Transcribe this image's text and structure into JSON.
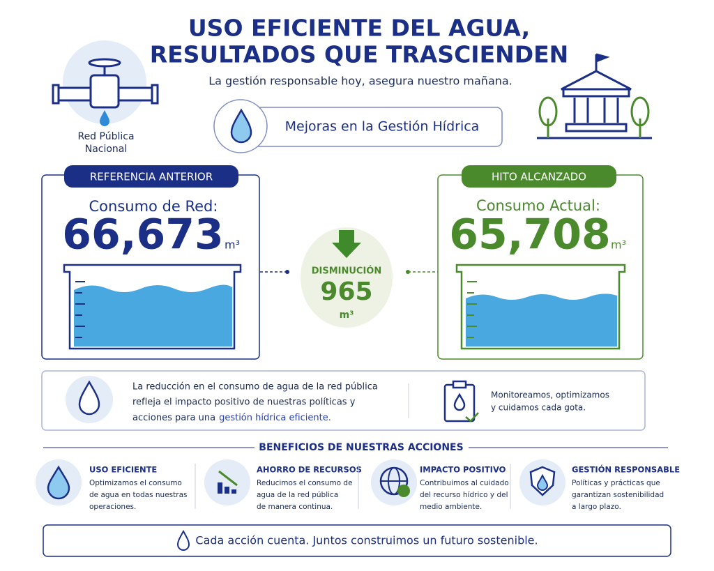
{
  "header": {
    "title_line1": "USO EFICIENTE DEL AGUA,",
    "title_line2": "RESULTADOS QUE TRASCIENDEN",
    "subtitle": "La gestión responsable hoy, asegura nuestro mañana."
  },
  "network_label": {
    "line1": "Red Pública",
    "line2": "Nacional"
  },
  "highlight": "Mejoras en la Gestión Hídrica",
  "previous": {
    "badge": "REFERENCIA ANTERIOR",
    "label": "Consumo de Red:",
    "value": "66,673",
    "unit": "m³"
  },
  "reduction": {
    "label": "DISMINUCIÓN",
    "value": "965",
    "unit": "m³"
  },
  "current": {
    "badge": "HITO ALCANZADO",
    "label": "Consumo Actual:",
    "value": "65,708",
    "unit": "m³"
  },
  "note": {
    "lines": [
      "La reducción en el consumo de agua de la red pública",
      "refleja el impacto positivo de nuestras políticas y",
      "acciones para una"
    ],
    "emphasis": "gestión hídrica eficiente."
  },
  "monitor": {
    "lines": [
      "Monitoreamos, optimizamos",
      "y cuidamos cada gota."
    ]
  },
  "benefits": {
    "title": "BENEFICIOS DE NUESTRAS ACCIONES",
    "items": [
      {
        "title": "USO EFICIENTE",
        "lines": [
          "Optimizamos el consumo",
          "de agua en todas nuestras",
          "operaciones."
        ]
      },
      {
        "title": "AHORRO DE RECURSOS",
        "lines": [
          "Reducimos el consumo de",
          "agua de la red pública",
          "de manera continua."
        ]
      },
      {
        "title": "IMPACTO POSITIVO",
        "lines": [
          "Contribuimos al cuidado",
          "del recurso hídrico y del",
          "medio ambiente."
        ]
      },
      {
        "title": "GESTIÓN RESPONSABLE",
        "lines": [
          "Políticas y prácticas que",
          "garantizan sostenibilidad",
          "a largo plazo."
        ]
      }
    ]
  },
  "footer": "Cada acción cuenta. Juntos construimos un futuro sostenible."
}
